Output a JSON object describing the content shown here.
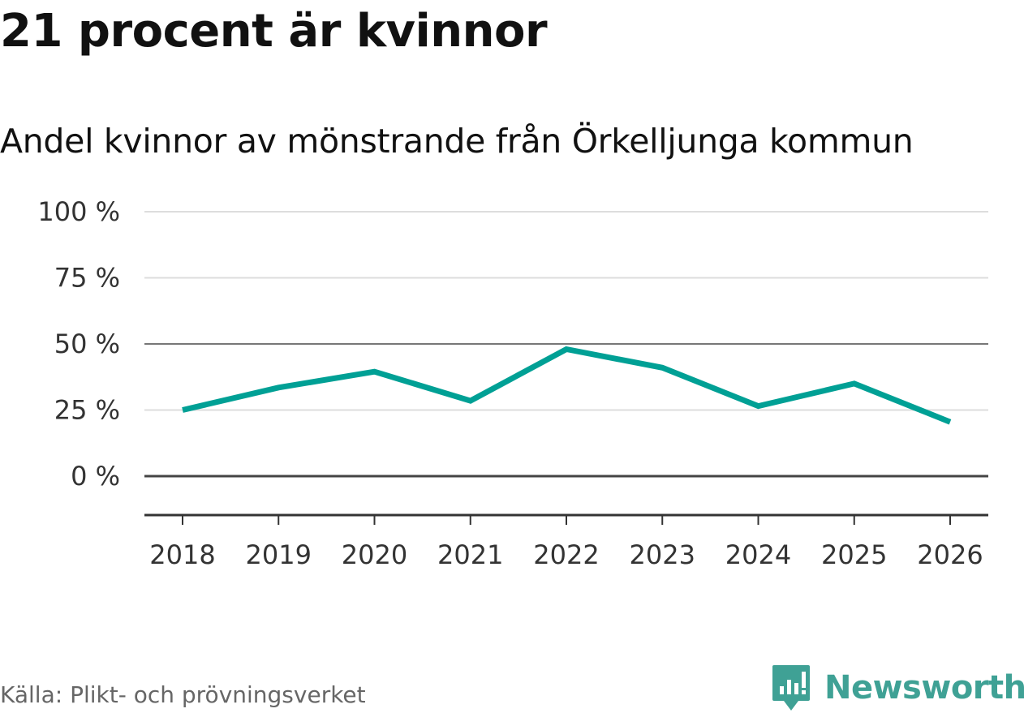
{
  "chart_data": {
    "type": "line",
    "title": "21 procent är kvinnor",
    "subtitle": "Andel kvinnor av mönstrande från Örkelljunga kommun",
    "categories": [
      "2018",
      "2019",
      "2020",
      "2021",
      "2022",
      "2023",
      "2024",
      "2025",
      "2026"
    ],
    "series": [
      {
        "name": "Andel kvinnor",
        "values": [
          25,
          33.5,
          39.5,
          28.5,
          48,
          41,
          26.5,
          35,
          20.5
        ]
      }
    ],
    "y_ticks": [
      0,
      25,
      50,
      75,
      100
    ],
    "y_tick_labels": [
      "0 %",
      "25 %",
      "50 %",
      "75 %",
      "100 %"
    ],
    "ylim": [
      -15,
      100
    ],
    "ylabel": "",
    "xlabel": "",
    "grid": true,
    "legend": "none",
    "colors": {
      "line": "#00a095",
      "grid": "#dddddd",
      "grid_emphasis": "#777777",
      "zero_line": "#444444",
      "axis": "#333333"
    }
  },
  "source": "Källa: Plikt- och prövningsverket",
  "brand": {
    "name": "Newsworthy",
    "color": "#3fa195"
  }
}
